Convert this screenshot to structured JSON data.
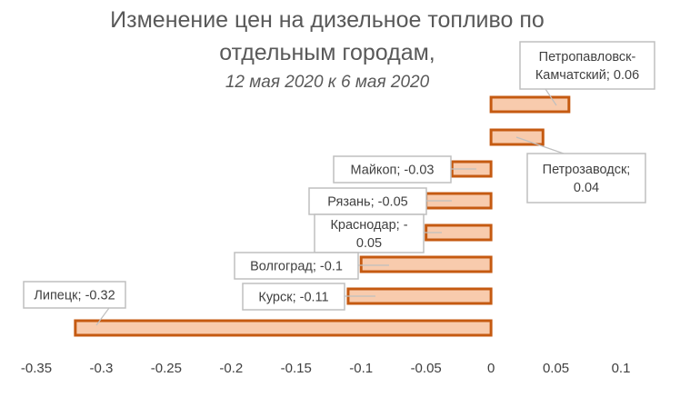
{
  "chart_data": {
    "type": "bar",
    "orientation": "horizontal",
    "title": "Изменение цен на дизельное топливо по отдельным городам,",
    "title_lines": [
      "Изменение цен на дизельное топливо по",
      "отдельным городам,"
    ],
    "subtitle": "12 мая 2020 к 6 мая 2020",
    "xlim": [
      -0.35,
      0.1
    ],
    "x_ticks": [
      "-0.35",
      "-0.3",
      "-0.25",
      "-0.2",
      "-0.15",
      "-0.1",
      "-0.05",
      "0",
      "0.05",
      "0.1"
    ],
    "x_tick_values": [
      -0.35,
      -0.3,
      -0.25,
      -0.2,
      -0.15,
      -0.1,
      -0.05,
      0,
      0.05,
      0.1
    ],
    "grid": false,
    "legend": "none",
    "categories": [
      "Петропавловск-Камчатский",
      "Петрозаводск",
      "Майкоп",
      "Рязань",
      "Краснодар",
      "Волгоград",
      "Курск",
      "Липецк"
    ],
    "values": [
      0.06,
      0.04,
      -0.03,
      -0.05,
      -0.05,
      -0.1,
      -0.11,
      -0.32
    ],
    "data_labels": [
      [
        "Петропавловск-",
        "Камчатский; 0.06"
      ],
      [
        "Петрозаводск;",
        "0.04"
      ],
      [
        "Майкоп; -0.03"
      ],
      [
        "Рязань; -0.05"
      ],
      [
        "Краснодар; -",
        "0.05"
      ],
      [
        "Волгоград; -0.1"
      ],
      [
        "Курск; -0.11"
      ],
      [
        "Липецк; -0.32"
      ]
    ],
    "colors": {
      "bar_fill": "#f8cbad",
      "bar_stroke": "#c55a11",
      "callout_border": "#bfbfbf",
      "text": "#404040",
      "title": "#595959"
    }
  }
}
